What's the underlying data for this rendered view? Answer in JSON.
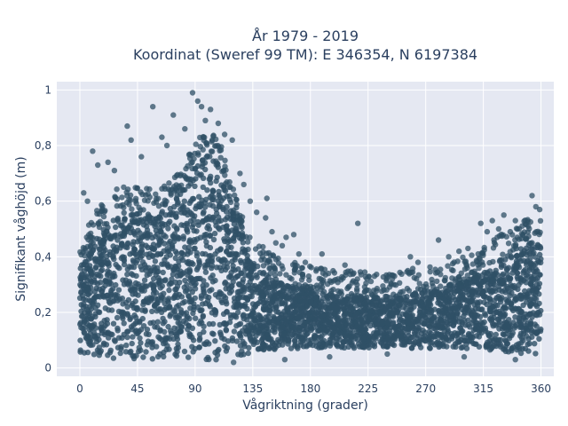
{
  "chart_data": {
    "type": "scatter",
    "title_line1": "År 1979 - 2019",
    "title_line2": "Koordinat (Sweref 99 TM): E 346354, N 6197384",
    "xlabel": "Vågriktning (grader)",
    "ylabel": "Signifikant våghöjd (m)",
    "xlim": [
      -18,
      370
    ],
    "ylim": [
      -0.03,
      1.03
    ],
    "x_ticks": [
      0,
      45,
      90,
      135,
      180,
      225,
      270,
      315,
      360
    ],
    "x_tick_labels": [
      "0",
      "45",
      "90",
      "135",
      "180",
      "225",
      "270",
      "315",
      "360"
    ],
    "y_ticks": [
      0,
      0.2,
      0.4,
      0.6,
      0.8,
      1
    ],
    "y_tick_labels": [
      "0",
      "0,2",
      "0,4",
      "0,6",
      "0,8",
      "1"
    ],
    "grid": true,
    "marker_color": "#2f5066",
    "background_color": "#e5e8f2",
    "envelope": {
      "x": [
        0,
        10,
        20,
        30,
        40,
        50,
        60,
        70,
        80,
        90,
        100,
        110,
        120,
        130,
        140,
        150,
        160,
        170,
        180,
        190,
        200,
        210,
        220,
        230,
        240,
        250,
        260,
        270,
        280,
        290,
        300,
        310,
        320,
        330,
        340,
        350,
        360
      ],
      "dense_upper": [
        0.36,
        0.46,
        0.52,
        0.56,
        0.57,
        0.56,
        0.55,
        0.58,
        0.64,
        0.72,
        0.78,
        0.72,
        0.55,
        0.42,
        0.36,
        0.32,
        0.3,
        0.29,
        0.28,
        0.27,
        0.26,
        0.26,
        0.26,
        0.26,
        0.26,
        0.26,
        0.27,
        0.28,
        0.29,
        0.3,
        0.31,
        0.33,
        0.36,
        0.4,
        0.43,
        0.45,
        0.44
      ],
      "dense_lower": [
        0.05,
        0.04,
        0.03,
        0.03,
        0.03,
        0.03,
        0.03,
        0.03,
        0.03,
        0.03,
        0.03,
        0.03,
        0.04,
        0.05,
        0.06,
        0.06,
        0.07,
        0.07,
        0.07,
        0.07,
        0.07,
        0.07,
        0.07,
        0.07,
        0.07,
        0.07,
        0.07,
        0.07,
        0.07,
        0.07,
        0.07,
        0.07,
        0.06,
        0.06,
        0.05,
        0.05,
        0.05
      ]
    },
    "outliers": [
      {
        "x": 37,
        "y": 0.87
      },
      {
        "x": 40,
        "y": 0.82
      },
      {
        "x": 57,
        "y": 0.94
      },
      {
        "x": 64,
        "y": 0.83
      },
      {
        "x": 68,
        "y": 0.8
      },
      {
        "x": 73,
        "y": 0.91
      },
      {
        "x": 82,
        "y": 0.86
      },
      {
        "x": 88,
        "y": 0.99
      },
      {
        "x": 92,
        "y": 0.96
      },
      {
        "x": 95,
        "y": 0.94
      },
      {
        "x": 98,
        "y": 0.89
      },
      {
        "x": 102,
        "y": 0.93
      },
      {
        "x": 108,
        "y": 0.88
      },
      {
        "x": 113,
        "y": 0.84
      },
      {
        "x": 119,
        "y": 0.82
      },
      {
        "x": 10,
        "y": 0.78
      },
      {
        "x": 14,
        "y": 0.73
      },
      {
        "x": 22,
        "y": 0.74
      },
      {
        "x": 27,
        "y": 0.71
      },
      {
        "x": 48,
        "y": 0.76
      },
      {
        "x": 3,
        "y": 0.63
      },
      {
        "x": 6,
        "y": 0.6
      },
      {
        "x": 125,
        "y": 0.7
      },
      {
        "x": 128,
        "y": 0.66
      },
      {
        "x": 133,
        "y": 0.6
      },
      {
        "x": 138,
        "y": 0.56
      },
      {
        "x": 145,
        "y": 0.54
      },
      {
        "x": 146,
        "y": 0.61
      },
      {
        "x": 150,
        "y": 0.49
      },
      {
        "x": 153,
        "y": 0.45
      },
      {
        "x": 158,
        "y": 0.44
      },
      {
        "x": 161,
        "y": 0.47
      },
      {
        "x": 167,
        "y": 0.48
      },
      {
        "x": 171,
        "y": 0.41
      },
      {
        "x": 176,
        "y": 0.38
      },
      {
        "x": 189,
        "y": 0.41
      },
      {
        "x": 207,
        "y": 0.37
      },
      {
        "x": 217,
        "y": 0.52
      },
      {
        "x": 230,
        "y": 0.33
      },
      {
        "x": 244,
        "y": 0.32
      },
      {
        "x": 258,
        "y": 0.4
      },
      {
        "x": 264,
        "y": 0.38
      },
      {
        "x": 280,
        "y": 0.46
      },
      {
        "x": 288,
        "y": 0.4
      },
      {
        "x": 296,
        "y": 0.42
      },
      {
        "x": 303,
        "y": 0.43
      },
      {
        "x": 311,
        "y": 0.41
      },
      {
        "x": 313,
        "y": 0.52
      },
      {
        "x": 318,
        "y": 0.49
      },
      {
        "x": 322,
        "y": 0.53
      },
      {
        "x": 327,
        "y": 0.5
      },
      {
        "x": 331,
        "y": 0.55
      },
      {
        "x": 336,
        "y": 0.49
      },
      {
        "x": 340,
        "y": 0.53
      },
      {
        "x": 346,
        "y": 0.48
      },
      {
        "x": 353,
        "y": 0.62
      },
      {
        "x": 356,
        "y": 0.58
      },
      {
        "x": 359,
        "y": 0.57
      },
      {
        "x": 350,
        "y": 0.51
      },
      {
        "x": 120,
        "y": 0.02
      },
      {
        "x": 160,
        "y": 0.03
      },
      {
        "x": 195,
        "y": 0.04
      },
      {
        "x": 240,
        "y": 0.05
      },
      {
        "x": 300,
        "y": 0.04
      },
      {
        "x": 340,
        "y": 0.03
      }
    ]
  }
}
